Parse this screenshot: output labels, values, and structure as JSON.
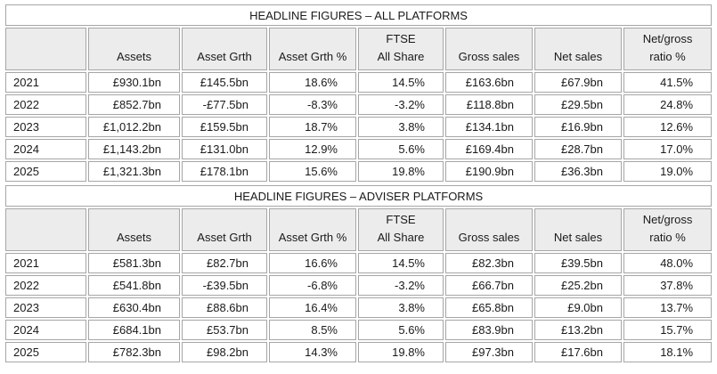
{
  "style": {
    "border_color": "#a6a6a6",
    "header_fill": "#ececec",
    "text_color": "#1a1a1a"
  },
  "tables": [
    {
      "title": "HEADLINE FIGURES – ALL PLATFORMS",
      "columns": [
        "",
        "Assets",
        "Asset Grth",
        "Asset Grth %",
        "FTSE\nAll Share",
        "Gross sales",
        "Net sales",
        "Net/gross\nratio %"
      ],
      "rows": [
        [
          "2021",
          "£930.1bn",
          "£145.5bn",
          "18.6%",
          "14.5%",
          "£163.6bn",
          "£67.9bn",
          "41.5%"
        ],
        [
          "2022",
          "£852.7bn",
          "-£77.5bn",
          "-8.3%",
          "-3.2%",
          "£118.8bn",
          "£29.5bn",
          "24.8%"
        ],
        [
          "2023",
          "£1,012.2bn",
          "£159.5bn",
          "18.7%",
          "3.8%",
          "£134.1bn",
          "£16.9bn",
          "12.6%"
        ],
        [
          "2024",
          "£1,143.2bn",
          "£131.0bn",
          "12.9%",
          "5.6%",
          "£169.4bn",
          "£28.7bn",
          "17.0%"
        ],
        [
          "2025",
          "£1,321.3bn",
          "£178.1bn",
          "15.6%",
          "19.8%",
          "£190.9bn",
          "£36.3bn",
          "19.0%"
        ]
      ]
    },
    {
      "title": "HEADLINE FIGURES – ADVISER PLATFORMS",
      "columns": [
        "",
        "Assets",
        "Asset Grth",
        "Asset Grth %",
        "FTSE\nAll Share",
        "Gross sales",
        "Net sales",
        "Net/gross\nratio %"
      ],
      "rows": [
        [
          "2021",
          "£581.3bn",
          "£82.7bn",
          "16.6%",
          "14.5%",
          "£82.3bn",
          "£39.5bn",
          "48.0%"
        ],
        [
          "2022",
          "£541.8bn",
          "-£39.5bn",
          "-6.8%",
          "-3.2%",
          "£66.7bn",
          "£25.2bn",
          "37.8%"
        ],
        [
          "2023",
          "£630.4bn",
          "£88.6bn",
          "16.4%",
          "3.8%",
          "£65.8bn",
          "£9.0bn",
          "13.7%"
        ],
        [
          "2024",
          "£684.1bn",
          "£53.7bn",
          "8.5%",
          "5.6%",
          "£83.9bn",
          "£13.2bn",
          "15.7%"
        ],
        [
          "2025",
          "£782.3bn",
          "£98.2bn",
          "14.3%",
          "19.8%",
          "£97.3bn",
          "£17.6bn",
          "18.1%"
        ]
      ]
    }
  ]
}
